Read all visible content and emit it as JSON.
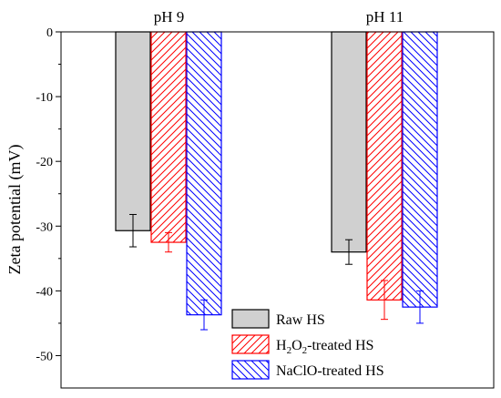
{
  "chart_data": {
    "type": "bar",
    "categories": [
      "pH 9",
      "pH 11"
    ],
    "ylabel": "Zeta potential (mV)",
    "ylim": [
      -55,
      0
    ],
    "yticks": [
      0,
      -10,
      -20,
      -30,
      -40,
      -50
    ],
    "grid": false,
    "legend_position": "bottom-right",
    "series": [
      {
        "name": "Raw HS",
        "name_main": "Raw HS",
        "name_sub1": "",
        "name_mid": "",
        "name_sub2": "",
        "name_end": "",
        "values": [
          -30.7,
          -34.0
        ],
        "errors": [
          2.5,
          1.9
        ],
        "color": "#000000",
        "fill": "#d0d0d0",
        "pattern": "solid"
      },
      {
        "name": "H2O2-treated HS",
        "name_main": "H",
        "name_sub1": "2",
        "name_mid": "O",
        "name_sub2": "2",
        "name_end": "-treated HS",
        "values": [
          -32.5,
          -41.4
        ],
        "errors": [
          1.5,
          3.0
        ],
        "color": "#ff0000",
        "fill": "#ffffff",
        "pattern": "hatch-forward"
      },
      {
        "name": "NaClO-treated HS",
        "name_main": "NaClO-treated HS",
        "name_sub1": "",
        "name_mid": "",
        "name_sub2": "",
        "name_end": "",
        "values": [
          -43.7,
          -42.5
        ],
        "errors": [
          2.3,
          2.5
        ],
        "color": "#0000ff",
        "fill": "#ffffff",
        "pattern": "hatch-back"
      }
    ]
  }
}
